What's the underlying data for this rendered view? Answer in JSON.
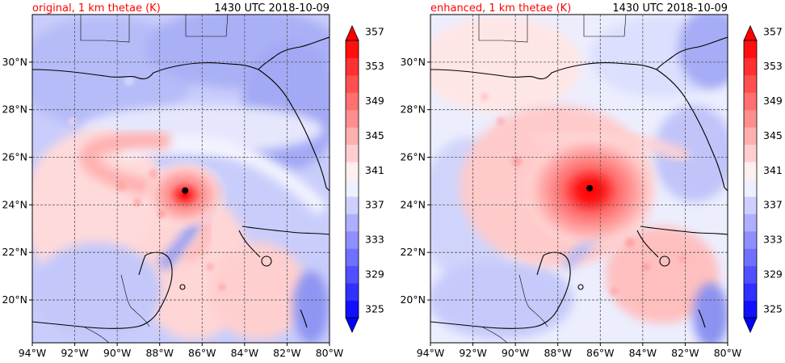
{
  "panels": [
    {
      "title_left": "original, 1 km thetae (K)",
      "title_right": "1430 UTC 2018-10-09",
      "storm_center": {
        "lon": -86.8,
        "lat": 24.6
      },
      "storm_strength": 0.62
    },
    {
      "title_left": "enhanced, 1 km thetae (K)",
      "title_right": "1430 UTC 2018-10-09",
      "storm_center": {
        "lon": -86.5,
        "lat": 24.7
      },
      "storm_strength": 1.0
    }
  ],
  "map": {
    "lon_range": [
      -94,
      -80
    ],
    "lat_range": [
      18.2,
      32
    ],
    "lon_ticks": [
      "94°W",
      "92°W",
      "90°W",
      "88°W",
      "86°W",
      "84°W",
      "82°W",
      "80°W"
    ],
    "lat_ticks": [
      "20°N",
      "22°N",
      "24°N",
      "26°N",
      "28°N",
      "30°N"
    ],
    "lon_tick_values": [
      -94,
      -92,
      -90,
      -88,
      -86,
      -84,
      -82,
      -80
    ],
    "lat_tick_values": [
      20,
      22,
      24,
      26,
      28,
      30
    ],
    "grid": true
  },
  "colorbar": {
    "levels": [
      325,
      327,
      329,
      331,
      333,
      335,
      337,
      339,
      341,
      343,
      345,
      347,
      349,
      351,
      353,
      355,
      357
    ],
    "labels": [
      "325",
      "329",
      "333",
      "337",
      "341",
      "345",
      "349",
      "353",
      "357"
    ],
    "extend": "both",
    "colors": {
      "min": "#0000ff",
      "mid": "#ffffff",
      "max": "#ff0000"
    }
  }
}
